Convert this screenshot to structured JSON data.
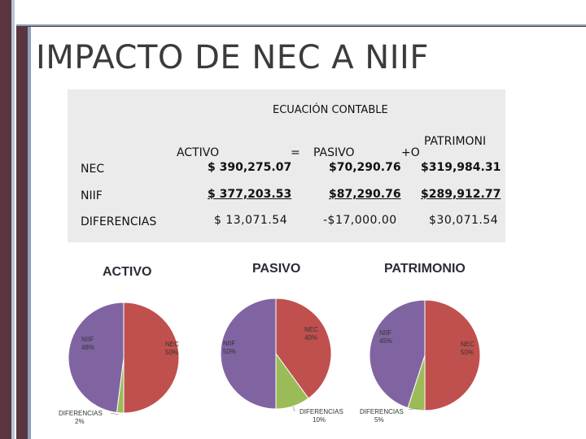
{
  "title": "IMPACTO DE NEC A NIIF",
  "table": {
    "heading": "ECUACIÓN CONTABLE",
    "columns": {
      "activo": "ACTIVO",
      "equals": "=",
      "pasivo": "PASIVO",
      "plus": "+O",
      "patrimonio": "PATRIMONI"
    },
    "rows": [
      {
        "label": "NEC",
        "activo": "$ 390,275.07",
        "pasivo": "$70,290.76",
        "patrimonio": "$319,984.31"
      },
      {
        "label": "NIIF",
        "activo": "$ 377,203.53",
        "pasivo": "$87,290.76",
        "patrimonio": "$289,912.77"
      },
      {
        "label": "DIFERENCIAS",
        "activo": "$ 13,071.54",
        "pasivo": "-$17,000.00",
        "patrimonio": "$30,071.54"
      }
    ]
  },
  "colors": {
    "nec": "#c0504d",
    "niif": "#8064a2",
    "diferencias": "#9bbb59",
    "frame": "#5a3540"
  },
  "chart_data": [
    {
      "type": "pie",
      "title": "ACTIVO",
      "slices": [
        {
          "name": "NEC",
          "pct_label": "50%",
          "value": 50
        },
        {
          "name": "DIFERENCIAS",
          "pct_label": "2%",
          "value": 2
        },
        {
          "name": "NIIF",
          "pct_label": "48%",
          "value": 48
        }
      ]
    },
    {
      "type": "pie",
      "title": "PASIVO",
      "slices": [
        {
          "name": "NEC",
          "pct_label": "40%",
          "value": 40
        },
        {
          "name": "DIFERENCIAS",
          "pct_label": "10%",
          "value": 10
        },
        {
          "name": "NIIF",
          "pct_label": "50%",
          "value": 50
        }
      ]
    },
    {
      "type": "pie",
      "title": "PATRIMONIO",
      "slices": [
        {
          "name": "NEC",
          "pct_label": "50%",
          "value": 50
        },
        {
          "name": "DIFERENCIAS",
          "pct_label": "5%",
          "value": 5
        },
        {
          "name": "NIIF",
          "pct_label": "45%",
          "value": 45
        }
      ]
    }
  ]
}
